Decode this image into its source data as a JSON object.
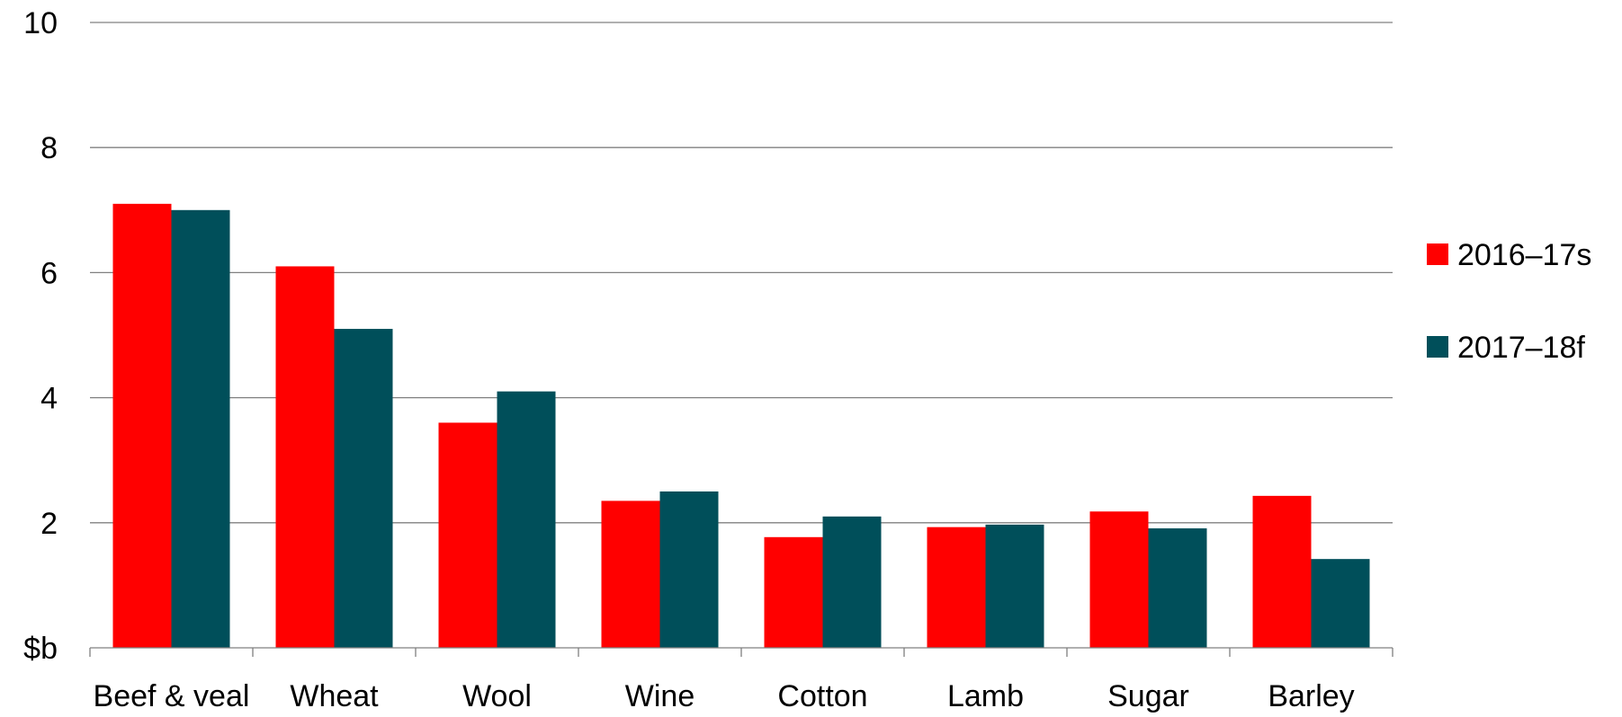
{
  "chart_data": {
    "type": "bar",
    "title": "",
    "xlabel": "",
    "ylabel": "",
    "y_unit_label": "$b",
    "ylim": [
      0,
      10
    ],
    "yticks": [
      0,
      2,
      4,
      6,
      8,
      10
    ],
    "ytick_labels": [
      "$b",
      "2",
      "4",
      "6",
      "8",
      "10"
    ],
    "grid": true,
    "legend_position": "right",
    "categories": [
      "Beef & veal",
      "Wheat",
      "Wool",
      "Wine",
      "Cotton",
      "Lamb",
      "Sugar",
      "Barley"
    ],
    "series": [
      {
        "name": "2016–17s",
        "color": "#ff0000",
        "values": [
          7.1,
          6.1,
          3.6,
          2.35,
          1.77,
          1.93,
          2.18,
          2.43
        ]
      },
      {
        "name": "2017–18f",
        "color": "#004f5a",
        "values": [
          7.0,
          5.1,
          4.1,
          2.5,
          2.1,
          1.97,
          1.91,
          1.42
        ]
      }
    ]
  }
}
